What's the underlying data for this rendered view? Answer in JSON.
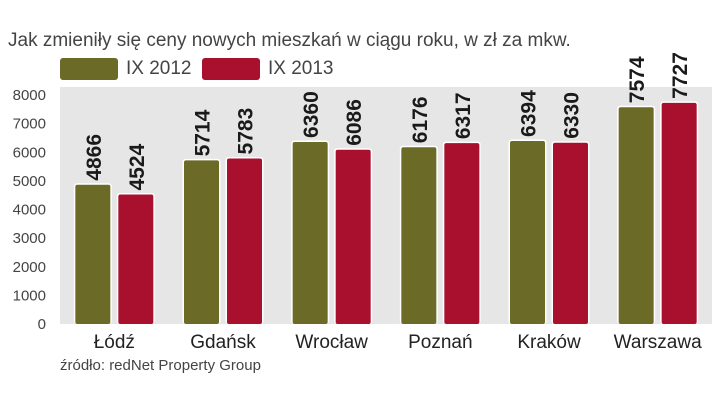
{
  "title": "Jak zmieniły się ceny nowych mieszkań w ciągu roku, w zł za mkw.",
  "source": "źródło: redNet Property Group",
  "colors": {
    "ix2012": "#6b6a26",
    "ix2013": "#a8102e"
  },
  "chart_data": {
    "type": "bar",
    "title": "Jak zmieniły się ceny nowych mieszkań w ciągu roku, w zł za mkw.",
    "xlabel": "",
    "ylabel": "",
    "categories": [
      "Łódź",
      "Gdańsk",
      "Wrocław",
      "Poznań",
      "Kraków",
      "Warszawa"
    ],
    "series": [
      {
        "name": "IX 2012",
        "values": [
          4866,
          5714,
          6360,
          6176,
          6394,
          7574
        ]
      },
      {
        "name": "IX 2013",
        "values": [
          4524,
          5783,
          6086,
          6317,
          6330,
          7727
        ]
      }
    ],
    "ylim": [
      0,
      8000
    ],
    "yticks": [
      0,
      1000,
      2000,
      3000,
      4000,
      5000,
      6000,
      7000,
      8000
    ],
    "grid": false,
    "legend": "top-left"
  }
}
